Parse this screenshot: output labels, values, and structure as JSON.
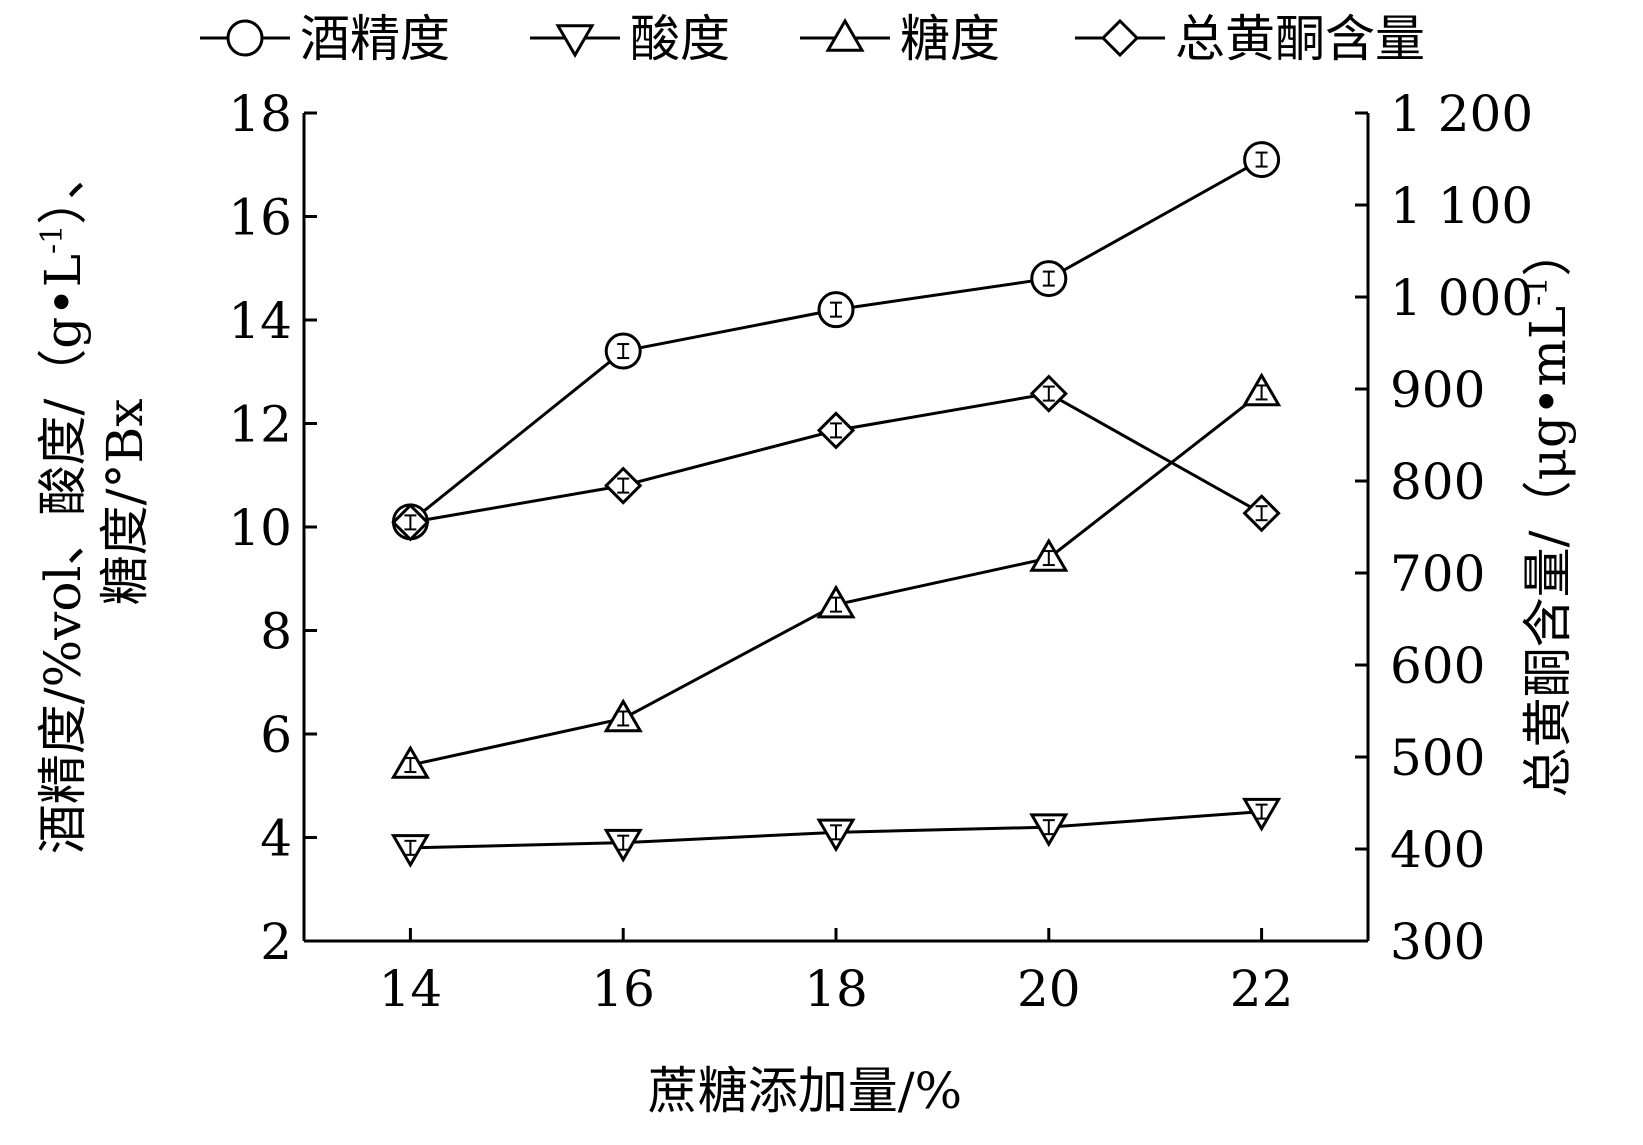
{
  "chart_data": {
    "type": "line",
    "legend": {
      "placement": "top",
      "entries": [
        {
          "label": "酒精度",
          "marker": "circle"
        },
        {
          "label": "酸度",
          "marker": "triangle-down"
        },
        {
          "label": "糖度",
          "marker": "triangle-up"
        },
        {
          "label": "总黄酮含量",
          "marker": "diamond"
        }
      ]
    },
    "x": [
      14,
      16,
      18,
      20,
      22
    ],
    "xlabel": "蔗糖添加量/%",
    "xlim": [
      13,
      23
    ],
    "x_ticks": [
      "14",
      "16",
      "18",
      "20",
      "22"
    ],
    "ylabel_left_line1": "酒精度/%vol、酸度/（g•L",
    "ylabel_left_sup": "-1",
    "ylabel_left_line1_end": "）、",
    "ylabel_left_line2": "糖度/°Bx",
    "ylim_left": [
      2,
      18
    ],
    "y_ticks_left": [
      "2",
      "4",
      "6",
      "8",
      "10",
      "12",
      "14",
      "16",
      "18"
    ],
    "ylabel_right_main": "总黄酮含量/（μg•mL",
    "ylabel_right_sup": "-1",
    "ylabel_right_end": "）",
    "ylim_right": [
      300,
      1200
    ],
    "y_ticks_right": [
      "300",
      "400",
      "500",
      "600",
      "700",
      "800",
      "900",
      "1 000",
      "1 100",
      "1 200"
    ],
    "grid": false,
    "series": [
      {
        "name": "酒精度",
        "axis": "left",
        "marker": "circle",
        "values": [
          10.1,
          13.4,
          14.2,
          14.8,
          17.1
        ]
      },
      {
        "name": "酸度",
        "axis": "left",
        "marker": "triangle-down",
        "values": [
          3.8,
          3.9,
          4.1,
          4.2,
          4.5
        ]
      },
      {
        "name": "糖度",
        "axis": "left",
        "marker": "triangle-up",
        "values": [
          5.4,
          6.3,
          8.5,
          9.4,
          12.6
        ]
      },
      {
        "name": "总黄酮含量",
        "axis": "right",
        "marker": "diamond",
        "values": [
          755,
          795,
          855,
          895,
          765
        ]
      }
    ]
  }
}
